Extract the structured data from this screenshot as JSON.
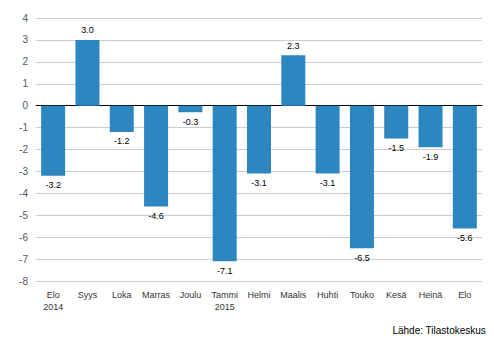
{
  "chart_data": {
    "type": "bar",
    "categories": [
      "Elo",
      "Syys",
      "Loka",
      "Marras",
      "Joulu",
      "Tammi",
      "Helmi",
      "Maalis",
      "Huhti",
      "Touko",
      "Kesä",
      "Heinä",
      "Elo"
    ],
    "values": [
      -3.2,
      3.0,
      -1.2,
      -4.6,
      -0.3,
      -7.1,
      -3.1,
      2.3,
      -3.1,
      -6.5,
      -1.5,
      -1.9,
      -5.6
    ],
    "value_labels": [
      "-3.2",
      "3.0",
      "-1.2",
      "-4.6",
      "-0.3",
      "-7.1",
      "-3.1",
      "2.3",
      "-3.1",
      "-6.5",
      "-1.5",
      "-1.9",
      "-5.6"
    ],
    "data_labels": true,
    "color": "#2E86C1",
    "ylim": [
      -8,
      4
    ],
    "yticks": [
      -8,
      -7,
      -6,
      -5,
      -4,
      -3,
      -2,
      -1,
      0,
      1,
      2,
      3,
      4
    ],
    "grid": true,
    "annotations": [
      {
        "text": "2014",
        "index": 0
      },
      {
        "text": "2015",
        "index": 5
      },
      {
        "text": "Lähde: Tilastokeskus"
      }
    ]
  }
}
